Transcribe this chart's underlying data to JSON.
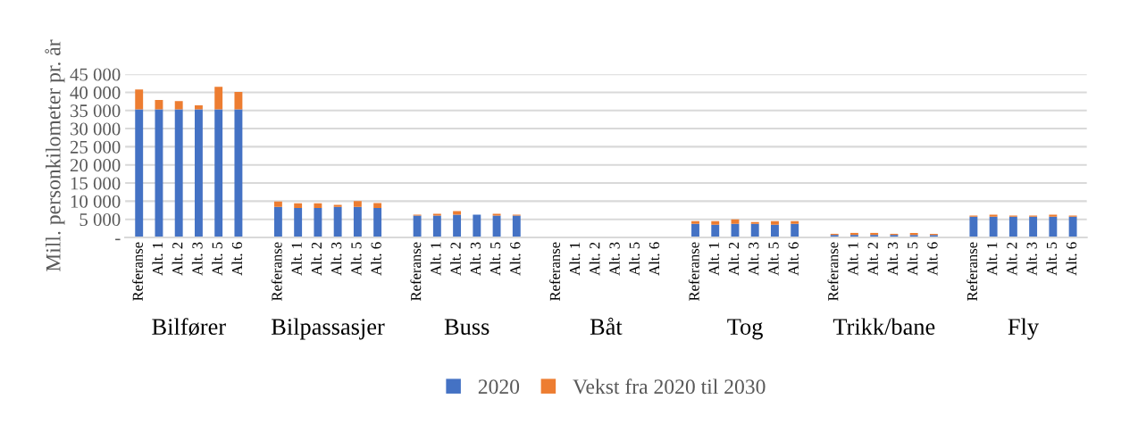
{
  "chart_data": {
    "type": "bar",
    "stacked": true,
    "ylabel": "Mill. personkilometer pr. år",
    "categories": [
      "Referanse",
      "Alt. 1",
      "Alt. 2",
      "Alt. 3",
      "Alt. 5",
      "Alt. 6",
      null,
      "Referanse",
      "Alt. 1",
      "Alt. 2",
      "Alt. 3",
      "Alt. 5",
      "Alt. 6",
      null,
      "Referanse",
      "Alt. 1",
      "Alt. 2",
      "Alt. 3",
      "Alt. 5",
      "Alt. 6",
      null,
      "Referanse",
      "Alt. 1",
      "Alt. 2",
      "Alt. 3",
      "Alt. 5",
      "Alt. 6",
      null,
      "Referanse",
      "Alt. 1",
      "Alt. 2",
      "Alt. 3",
      "Alt. 5",
      "Alt. 6",
      null,
      "Referanse",
      "Alt. 1",
      "Alt. 2",
      "Alt. 3",
      "Alt. 5",
      "Alt. 6",
      null,
      "Referanse",
      "Alt. 1",
      "Alt. 2",
      "Alt. 3",
      "Alt. 5",
      "Alt. 6"
    ],
    "annotations": [
      "Bilfører",
      "Bilpassasjer",
      "Buss",
      "Båt",
      "Tog",
      "Trikk/bane",
      "Fly"
    ],
    "series": [
      {
        "name": "2020",
        "color": "#4472c4",
        "values": [
          35300,
          35300,
          35300,
          35300,
          35300,
          35300,
          null,
          8400,
          8100,
          8100,
          8400,
          8400,
          8100,
          null,
          6000,
          6000,
          6250,
          6250,
          6000,
          6000,
          null,
          0,
          0,
          0,
          0,
          0,
          0,
          null,
          3750,
          3500,
          3750,
          3750,
          3500,
          3750,
          null,
          700,
          700,
          700,
          700,
          700,
          700,
          null,
          5750,
          5750,
          5750,
          5750,
          5750,
          5750
        ]
      },
      {
        "name": "Vekst fra 2020 til 2030",
        "color": "#ed7d31",
        "values": [
          5500,
          2600,
          2300,
          1100,
          6200,
          4800,
          null,
          1500,
          1300,
          1300,
          600,
          1600,
          1400,
          null,
          250,
          500,
          1000,
          0,
          500,
          250,
          null,
          0,
          0,
          0,
          0,
          0,
          0,
          null,
          750,
          1000,
          1250,
          500,
          1000,
          750,
          null,
          300,
          550,
          550,
          300,
          550,
          300,
          null,
          250,
          500,
          250,
          250,
          500,
          250
        ]
      }
    ],
    "ylim": [
      0,
      45000
    ],
    "yticks": [
      {
        "value": 0,
        "label": "-"
      },
      {
        "value": 5000,
        "label": "5 000"
      },
      {
        "value": 10000,
        "label": "10 000"
      },
      {
        "value": 15000,
        "label": "15 000"
      },
      {
        "value": 20000,
        "label": "20 000"
      },
      {
        "value": 25000,
        "label": "25 000"
      },
      {
        "value": 30000,
        "label": "30 000"
      },
      {
        "value": 35000,
        "label": "35 000"
      },
      {
        "value": 40000,
        "label": "40 000"
      },
      {
        "value": 45000,
        "label": "45 000"
      }
    ],
    "grid": "y",
    "legend": "bottom"
  }
}
